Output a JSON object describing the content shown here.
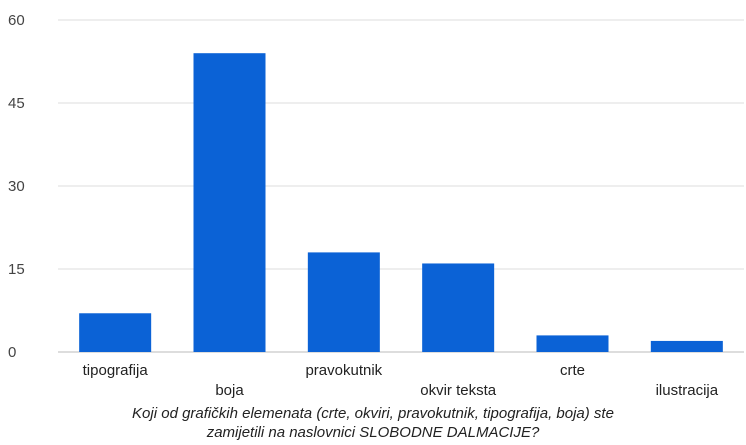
{
  "chart_data": {
    "type": "bar",
    "categories": [
      "tipografija",
      "boja",
      "pravokutnik",
      "okvir teksta",
      "crte",
      "ilustracija"
    ],
    "values": [
      7,
      54,
      18,
      16,
      3,
      2
    ],
    "ylim": [
      0,
      60
    ],
    "yticks": [
      0,
      15,
      30,
      45,
      60
    ],
    "grid": true,
    "bar_color": "#0b62d6",
    "grid_color": "#dddddd",
    "caption_lines": [
      "Koji od grafičkih elemenata (crte, okviri, pravokutnik, tipografija, boja) ste",
      "zamijetili na naslovnici SLOBODNE DALMACIJE?"
    ]
  }
}
